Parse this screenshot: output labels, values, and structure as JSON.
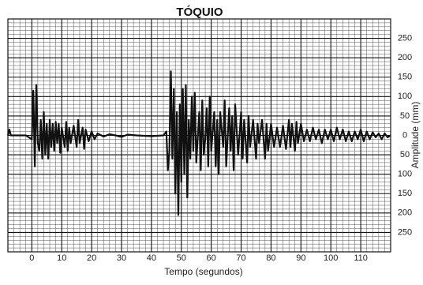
{
  "chart_data": {
    "type": "line",
    "title": "TÓQUIO",
    "x_label": "Tempo (segundos)",
    "y_label": "Amplitude (mm)",
    "xlim": [
      -8,
      120
    ],
    "ylim": [
      -300,
      300
    ],
    "xticks": [
      0,
      10,
      20,
      30,
      40,
      50,
      60,
      70,
      80,
      90,
      100,
      110
    ],
    "yticks": [
      {
        "value": -250,
        "label": "250"
      },
      {
        "value": -200,
        "label": "200"
      },
      {
        "value": -150,
        "label": "150"
      },
      {
        "value": -100,
        "label": "100"
      },
      {
        "value": -50,
        "label": "50"
      },
      0,
      50,
      100,
      150,
      200,
      250
    ],
    "grid": true,
    "series": [
      {
        "name": "Tóquio",
        "color": "#111111",
        "x": [
          -8,
          -7.5,
          -7,
          -2,
          0,
          0.5,
          1,
          1.5,
          2,
          2.5,
          3,
          3.5,
          4,
          4.5,
          5,
          5.5,
          6,
          6.5,
          7,
          7.5,
          8,
          8.5,
          9,
          9.5,
          10,
          11,
          11.5,
          12,
          12.5,
          13,
          14,
          15,
          15.5,
          16,
          17,
          17.5,
          18,
          19,
          20,
          21,
          22,
          24,
          26,
          28,
          30,
          32,
          35,
          40,
          44,
          45,
          45.5,
          46,
          46.5,
          47,
          47.5,
          48,
          48.5,
          49,
          49.5,
          50,
          50.5,
          51,
          51.5,
          52,
          52.5,
          53,
          53.5,
          54,
          54.5,
          55,
          56,
          56.5,
          57,
          57.5,
          58,
          58.5,
          59,
          59.5,
          60,
          61,
          61.5,
          62,
          62.5,
          63,
          64,
          64.5,
          65,
          66,
          66.5,
          67,
          67.5,
          68,
          69,
          70,
          70.5,
          71,
          72,
          72.5,
          73,
          74,
          75,
          75.5,
          76,
          77,
          78,
          78.5,
          79,
          80,
          81,
          82,
          83,
          84,
          85,
          86,
          86.5,
          87,
          88,
          88.5,
          89,
          90,
          91,
          92,
          93,
          94,
          95,
          96,
          97,
          98,
          99,
          100,
          101,
          102,
          103,
          104,
          105,
          106,
          107,
          108,
          109,
          110,
          111,
          112,
          113,
          114,
          115,
          116,
          117,
          118,
          119,
          120
        ],
        "values": [
          0,
          15,
          0,
          0,
          -10,
          115,
          -80,
          130,
          -20,
          -40,
          40,
          -60,
          60,
          -50,
          30,
          -60,
          40,
          -30,
          30,
          -40,
          35,
          -20,
          30,
          -45,
          20,
          -30,
          35,
          -40,
          20,
          -20,
          25,
          -30,
          40,
          -20,
          20,
          -35,
          15,
          -15,
          10,
          -10,
          5,
          -3,
          3,
          0,
          -4,
          2,
          0,
          -2,
          0,
          10,
          -90,
          -40,
          165,
          -60,
          120,
          -150,
          60,
          -205,
          80,
          -120,
          120,
          -100,
          130,
          -160,
          40,
          -60,
          100,
          -40,
          110,
          -70,
          60,
          -90,
          90,
          -50,
          -10,
          70,
          -80,
          100,
          -40,
          60,
          -80,
          40,
          -100,
          60,
          -30,
          90,
          -80,
          70,
          -40,
          50,
          -90,
          80,
          -50,
          60,
          -60,
          40,
          -70,
          50,
          -30,
          40,
          -60,
          30,
          -20,
          40,
          -60,
          30,
          -40,
          30,
          -30,
          20,
          -30,
          25,
          -35,
          40,
          -30,
          30,
          -40,
          35,
          -20,
          30,
          -15,
          15,
          -15,
          20,
          -10,
          15,
          -20,
          15,
          -10,
          15,
          -15,
          20,
          -10,
          15,
          -15,
          10,
          -15,
          10,
          -10,
          15,
          -15,
          10,
          -10,
          8,
          -5,
          5,
          -10,
          5,
          -5,
          0
        ]
      }
    ]
  }
}
